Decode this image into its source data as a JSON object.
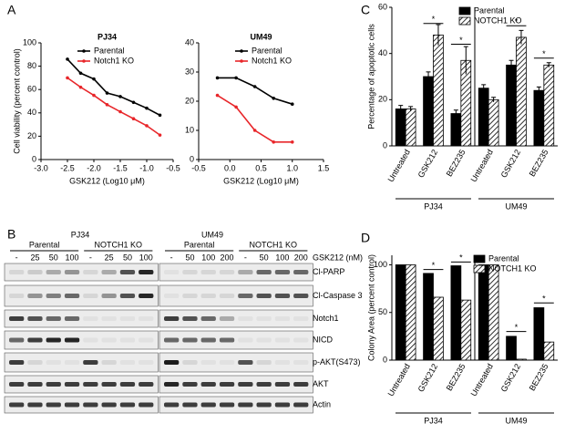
{
  "panel_labels": [
    "A",
    "B",
    "C",
    "D"
  ],
  "chart_data": [
    {
      "type": "line",
      "title": "PJ34",
      "xlabel": "GSK212 (Log10 μM)",
      "ylabel": "Cell viability (percent control)",
      "x": [
        -2.5,
        -2.25,
        -2.0,
        -1.75,
        -1.5,
        -1.25,
        -1.0,
        -0.75
      ],
      "series": [
        {
          "name": "Parental",
          "color": "#000000",
          "values": [
            86,
            74,
            69,
            57,
            54,
            49,
            44,
            38
          ]
        },
        {
          "name": "Notch1 KO",
          "color": "#e8262a",
          "values": [
            70,
            62,
            55,
            47,
            41,
            35,
            29,
            21
          ]
        }
      ],
      "xlim": [
        -3,
        -0.5
      ],
      "xticks": [
        {
          "value": -3,
          "label": "-3.0"
        },
        {
          "value": -2.5,
          "label": "-2.5"
        },
        {
          "value": -2,
          "label": "-2.0"
        },
        {
          "value": -1.5,
          "label": "-1.5"
        },
        {
          "value": -1,
          "label": "-1.0"
        },
        {
          "value": -0.5,
          "label": "-0.5"
        }
      ],
      "ylim": [
        0,
        100
      ],
      "yticks": [
        0,
        20,
        40,
        60,
        80,
        100
      ],
      "legend": "upper right"
    },
    {
      "type": "line",
      "title": "UM49",
      "xlabel": "GSK212 (Log10 μM)",
      "x": [
        -0.2,
        0.1,
        0.4,
        0.7,
        1.0
      ],
      "series": [
        {
          "name": "Parental",
          "color": "#000000",
          "values": [
            28,
            28,
            25,
            21,
            19
          ]
        },
        {
          "name": "Notch1 KO",
          "color": "#e8262a",
          "values": [
            22,
            18,
            10,
            6,
            6
          ]
        }
      ],
      "xlim": [
        -0.5,
        1.5
      ],
      "xticks": [
        {
          "value": -0.5,
          "label": "-0.5"
        },
        {
          "value": 0,
          "label": "0.0"
        },
        {
          "value": 0.5,
          "label": "0.5"
        },
        {
          "value": 1,
          "label": "1.0"
        },
        {
          "value": 1.5,
          "label": "1.5"
        }
      ],
      "ylim": [
        0,
        40
      ],
      "yticks": [
        0,
        10,
        20,
        30,
        40
      ],
      "legend": "upper right"
    },
    {
      "type": "bar",
      "ylabel": "Percentage of apoptotic cells",
      "categories": [
        "Untreated",
        "GSK212",
        "BEZ235",
        "Untreated",
        "GSK212",
        "BEZ235"
      ],
      "group_labels": [
        "PJ34",
        "UM49"
      ],
      "series": [
        {
          "name": "Parental",
          "color": "#000000",
          "hatch": false,
          "values": [
            16,
            30,
            14,
            25,
            35,
            24
          ],
          "errors": [
            1.5,
            2,
            1.5,
            1.5,
            2,
            1.5
          ]
        },
        {
          "name": "NOTCH1 KO",
          "color": "#000000",
          "hatch": true,
          "values": [
            16,
            48,
            37,
            20,
            47,
            35
          ],
          "errors": [
            1,
            4.5,
            6,
            1,
            3,
            1
          ]
        }
      ],
      "ylim": [
        0,
        60
      ],
      "yticks": [
        0,
        20,
        40,
        60
      ],
      "significance_labels": [
        "*",
        "*",
        "*",
        "*"
      ],
      "legend": "upper right"
    },
    {
      "type": "bar",
      "ylabel": "Colony Area (percent control)",
      "categories": [
        "Untreated",
        "GSK212",
        "BEZ235",
        "Untreated",
        "GSK212",
        "BEZ235"
      ],
      "group_labels": [
        "PJ34",
        "UM49"
      ],
      "series": [
        {
          "name": "Parental",
          "color": "#000000",
          "hatch": false,
          "values": [
            100,
            91,
            99,
            100,
            25,
            55
          ]
        },
        {
          "name": "NOTCH1 KO",
          "color": "#000000",
          "hatch": true,
          "values": [
            100,
            66,
            63,
            100,
            1,
            19
          ]
        }
      ],
      "ylim": [
        0,
        110
      ],
      "yticks": [
        0,
        50,
        100
      ],
      "significance_labels": [
        "*",
        "*",
        "*",
        "*"
      ],
      "legend": "upper right"
    }
  ],
  "blot": {
    "lines": [
      "PJ34",
      "UM49"
    ],
    "groups": [
      "Parental",
      "NOTCH1 KO",
      "Parental",
      "NOTCH1 KO"
    ],
    "lanes": [
      "-",
      "25",
      "50",
      "100",
      "-",
      "25",
      "50",
      "100",
      "-",
      "50",
      "100",
      "200",
      "-",
      "50",
      "100",
      "200"
    ],
    "treatment": "GSK212 (nM)",
    "rows": [
      "Cl-PARP",
      "Cl-Caspase 3",
      "Notch1",
      "NICD",
      "p-AKT(S473)",
      "AKT",
      "Actin"
    ]
  }
}
